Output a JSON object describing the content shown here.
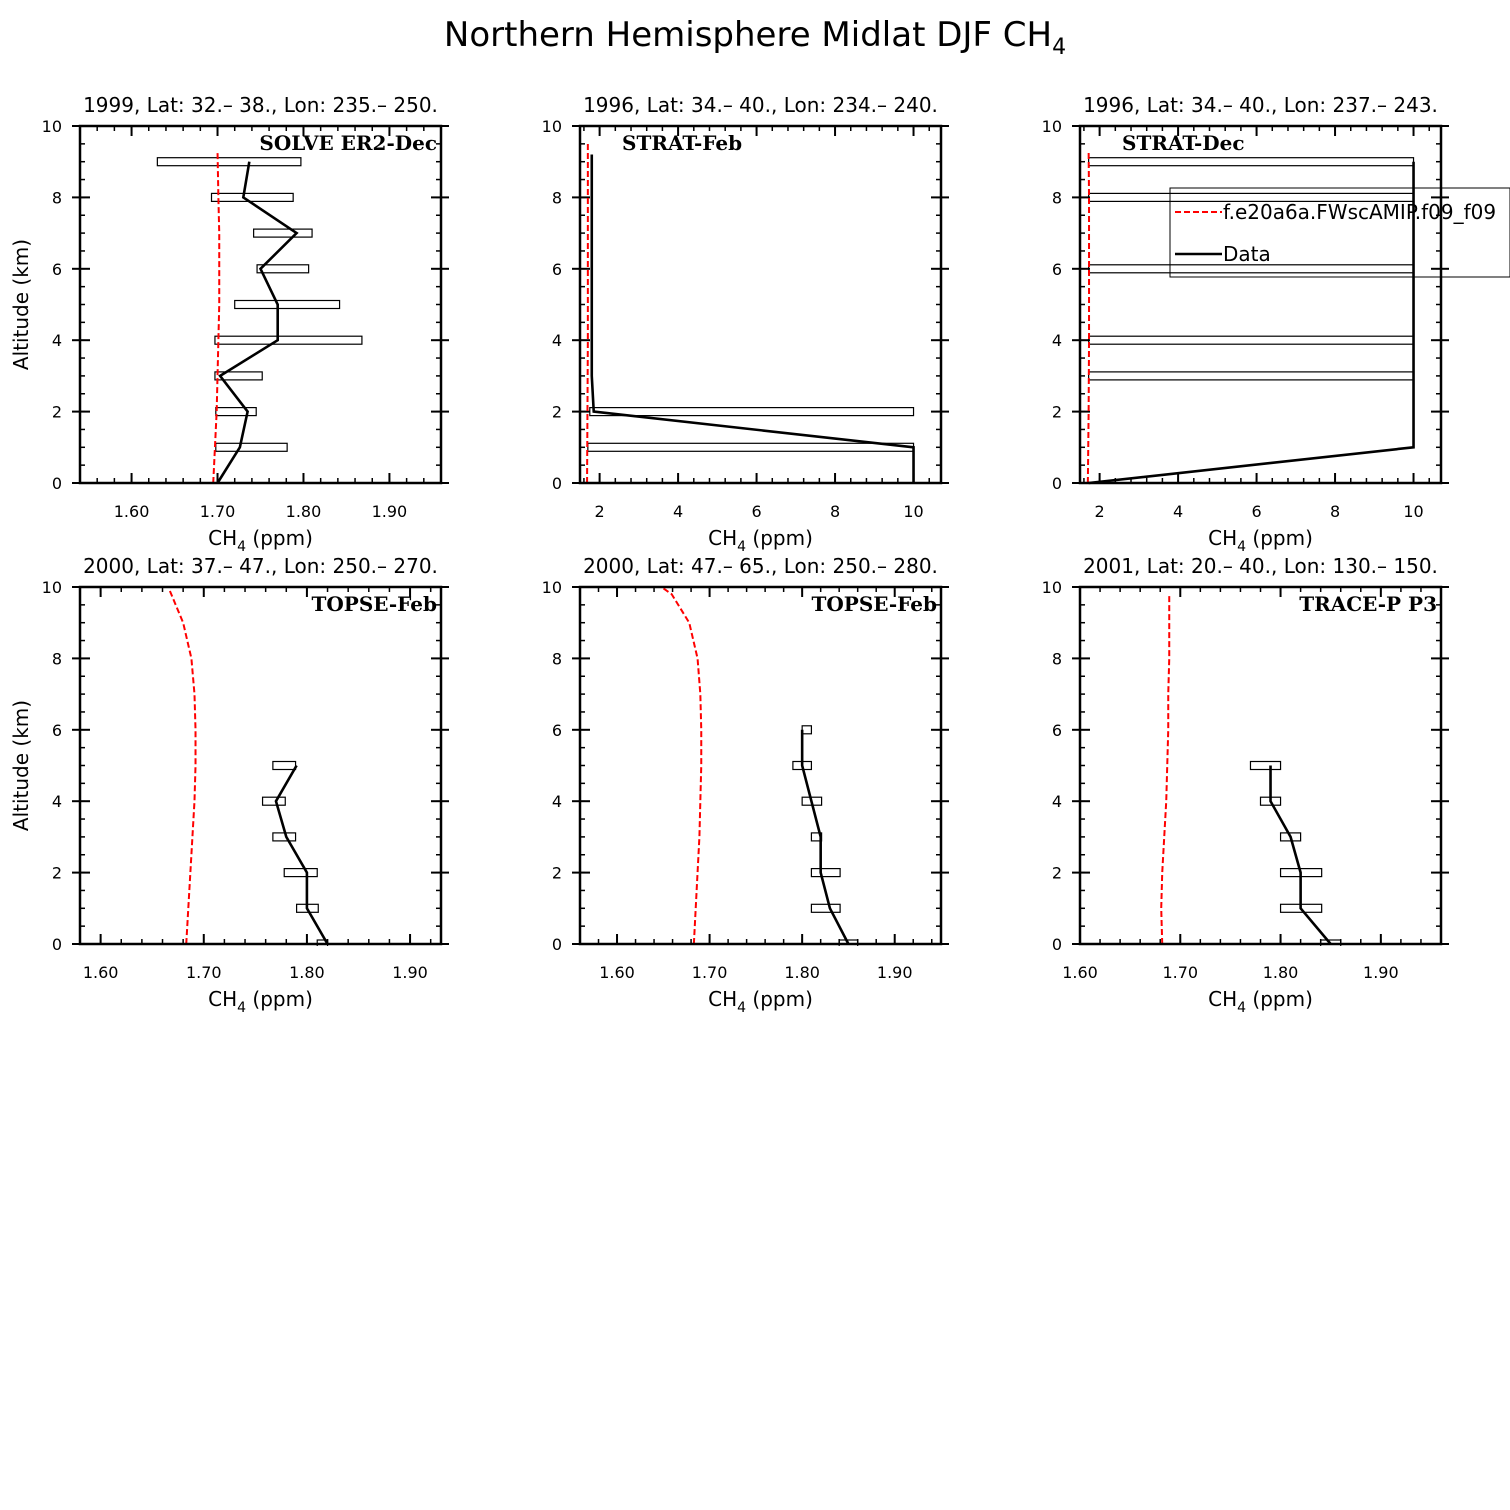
{
  "figure": {
    "title_main": "Northern Hemisphere Midlat DJF CH",
    "title_sub": "4"
  },
  "legend": {
    "placement": "inside third top panel, overflowing right edge",
    "model_label": "f.e20a6a.FWscAMIP.f09_f09",
    "data_label": "Data",
    "model_color": "#ff0000",
    "data_color": "#000000"
  },
  "chart_data": [
    {
      "type": "line",
      "title": "1999, Lat: 32.– 38., Lon: 235.– 250.",
      "campaign": "SOLVE ER2-Dec",
      "xlabel": "CH",
      "xlabel_sub": "4",
      "xlabel_unit": " (ppm)",
      "ylabel": "Altitude (km)",
      "xlim": [
        1.54,
        1.96
      ],
      "ylim": [
        0,
        10
      ],
      "xticks": [
        1.6,
        1.7,
        1.8,
        1.9
      ],
      "xtick_labels": [
        "1.60",
        "1.70",
        "1.80",
        "1.90"
      ],
      "yticks": [
        0,
        2,
        4,
        6,
        8,
        10
      ],
      "ytick_labels": [
        "0",
        "2",
        "4",
        "6",
        "8",
        "10"
      ],
      "series": [
        {
          "name": "f.e20a6a.FWscAMIP.f09_f09",
          "x": [
            1.695,
            1.697,
            1.699,
            1.7,
            1.701,
            1.702,
            1.702,
            1.702,
            1.701,
            1.7
          ],
          "y": [
            0,
            1,
            2,
            3,
            4,
            5,
            6,
            7,
            8,
            9.3
          ]
        },
        {
          "name": "Data",
          "x": [
            1.7,
            1.726,
            1.735,
            1.703,
            1.77,
            1.77,
            1.75,
            1.792,
            1.73,
            1.737
          ],
          "y": [
            0,
            1,
            2,
            3,
            4,
            5,
            6,
            7,
            8,
            9
          ]
        }
      ],
      "ranges": [
        {
          "y": 1,
          "lo": 1.698,
          "hi": 1.781
        },
        {
          "y": 2,
          "lo": 1.698,
          "hi": 1.745
        },
        {
          "y": 3,
          "lo": 1.697,
          "hi": 1.752
        },
        {
          "y": 4,
          "lo": 1.697,
          "hi": 1.868
        },
        {
          "y": 5,
          "lo": 1.72,
          "hi": 1.842
        },
        {
          "y": 6,
          "lo": 1.746,
          "hi": 1.806
        },
        {
          "y": 7,
          "lo": 1.742,
          "hi": 1.81
        },
        {
          "y": 8,
          "lo": 1.693,
          "hi": 1.788
        },
        {
          "y": 9,
          "lo": 1.63,
          "hi": 1.797
        }
      ]
    },
    {
      "type": "line",
      "title": "1996, Lat: 34.– 40., Lon: 234.– 240.",
      "campaign": "STRAT-Feb",
      "xlabel": "CH",
      "xlabel_sub": "4",
      "xlabel_unit": " (ppm)",
      "ylabel": "",
      "xlim": [
        1.5,
        10.7
      ],
      "ylim": [
        0,
        10
      ],
      "xticks": [
        2,
        4,
        6,
        8,
        10
      ],
      "xtick_labels": [
        "2",
        "4",
        "6",
        "8",
        "10"
      ],
      "yticks": [
        0,
        2,
        4,
        6,
        8,
        10
      ],
      "ytick_labels": [
        "0",
        "2",
        "4",
        "6",
        "8",
        "10"
      ],
      "series": [
        {
          "name": "f.e20a6a.FWscAMIP.f09_f09",
          "x": [
            1.68,
            1.69,
            1.7,
            1.7,
            1.7,
            1.7
          ],
          "y": [
            0,
            2,
            4,
            6,
            8,
            9.5
          ]
        },
        {
          "name": "Data",
          "x": [
            10,
            10,
            1.85,
            1.8,
            1.8,
            1.8,
            1.8,
            1.8
          ],
          "y": [
            0,
            1,
            2,
            3,
            4,
            6,
            8,
            9.2
          ]
        }
      ],
      "ranges": [
        {
          "y": 1,
          "lo": 1.7,
          "hi": 10.0
        },
        {
          "y": 2,
          "lo": 1.75,
          "hi": 10.0
        }
      ]
    },
    {
      "type": "line",
      "title": "1996, Lat: 34.– 40., Lon: 237.– 243.",
      "campaign": "STRAT-Dec",
      "xlabel": "CH",
      "xlabel_sub": "4",
      "xlabel_unit": " (ppm)",
      "ylabel": "",
      "xlim": [
        1.5,
        10.7
      ],
      "ylim": [
        0,
        10
      ],
      "xticks": [
        2,
        4,
        6,
        8,
        10
      ],
      "xtick_labels": [
        "2",
        "4",
        "6",
        "8",
        "10"
      ],
      "yticks": [
        0,
        2,
        4,
        6,
        8,
        10
      ],
      "ytick_labels": [
        "0",
        "2",
        "4",
        "6",
        "8",
        "10"
      ],
      "series": [
        {
          "name": "f.e20a6a.FWscAMIP.f09_f09",
          "x": [
            1.7,
            1.72,
            1.73,
            1.73,
            1.73,
            1.72
          ],
          "y": [
            0,
            2,
            4,
            6,
            8,
            9.3
          ]
        },
        {
          "name": "Data",
          "x": [
            1.72,
            10,
            10,
            10,
            10,
            10,
            10
          ],
          "y": [
            0,
            1,
            3,
            4,
            6,
            8,
            9
          ]
        }
      ],
      "ranges": [
        {
          "y": 3,
          "lo": 1.72,
          "hi": 10.0
        },
        {
          "y": 4,
          "lo": 1.72,
          "hi": 10.0
        },
        {
          "y": 6,
          "lo": 1.72,
          "hi": 10.0
        },
        {
          "y": 8,
          "lo": 1.72,
          "hi": 10.0
        },
        {
          "y": 9,
          "lo": 1.72,
          "hi": 10.0
        }
      ]
    },
    {
      "type": "line",
      "title": "2000, Lat: 37.– 47., Lon: 250.– 270.",
      "campaign": "TOPSE-Feb",
      "xlabel": "CH",
      "xlabel_sub": "4",
      "xlabel_unit": " (ppm)",
      "ylabel": "Altitude (km)",
      "xlim": [
        1.58,
        1.93
      ],
      "ylim": [
        0,
        10
      ],
      "xticks": [
        1.6,
        1.7,
        1.8,
        1.9
      ],
      "xtick_labels": [
        "1.60",
        "1.70",
        "1.80",
        "1.90"
      ],
      "yticks": [
        0,
        2,
        4,
        6,
        8,
        10
      ],
      "ytick_labels": [
        "0",
        "2",
        "4",
        "6",
        "8",
        "10"
      ],
      "series": [
        {
          "name": "f.e20a6a.FWscAMIP.f09_f09",
          "x": [
            1.683,
            1.685,
            1.687,
            1.689,
            1.691,
            1.692,
            1.692,
            1.691,
            1.688,
            1.68,
            1.667
          ],
          "y": [
            0,
            1,
            2,
            3,
            4,
            5,
            6,
            7,
            8,
            9,
            9.9
          ]
        },
        {
          "name": "Data",
          "x": [
            1.82,
            1.8,
            1.8,
            1.78,
            1.77,
            1.79
          ],
          "y": [
            0,
            1,
            2,
            3,
            4,
            5
          ]
        }
      ],
      "ranges": [
        {
          "y": 0,
          "lo": 1.81,
          "hi": 1.82
        },
        {
          "y": 1,
          "lo": 1.79,
          "hi": 1.811
        },
        {
          "y": 2,
          "lo": 1.778,
          "hi": 1.81
        },
        {
          "y": 3,
          "lo": 1.767,
          "hi": 1.789
        },
        {
          "y": 4,
          "lo": 1.757,
          "hi": 1.779
        },
        {
          "y": 5,
          "lo": 1.767,
          "hi": 1.789
        }
      ]
    },
    {
      "type": "line",
      "title": "2000, Lat: 47.– 65., Lon: 250.– 280.",
      "campaign": "TOPSE-Feb",
      "xlabel": "CH",
      "xlabel_sub": "4",
      "xlabel_unit": " (ppm)",
      "ylabel": "",
      "xlim": [
        1.56,
        1.95
      ],
      "ylim": [
        0,
        10
      ],
      "xticks": [
        1.6,
        1.7,
        1.8,
        1.9
      ],
      "xtick_labels": [
        "1.60",
        "1.70",
        "1.80",
        "1.90"
      ],
      "yticks": [
        0,
        2,
        4,
        6,
        8,
        10
      ],
      "ytick_labels": [
        "0",
        "2",
        "4",
        "6",
        "8",
        "10"
      ],
      "series": [
        {
          "name": "f.e20a6a.FWscAMIP.f09_f09",
          "x": [
            1.683,
            1.685,
            1.687,
            1.689,
            1.69,
            1.691,
            1.691,
            1.69,
            1.687,
            1.678,
            1.659,
            1.648
          ],
          "y": [
            0,
            1,
            2,
            3,
            4,
            5,
            6,
            7,
            8,
            9,
            9.8,
            10
          ]
        },
        {
          "name": "Data",
          "x": [
            1.85,
            1.83,
            1.82,
            1.82,
            1.81,
            1.8,
            1.8
          ],
          "y": [
            0,
            1,
            2,
            3,
            4,
            5,
            6
          ]
        }
      ],
      "ranges": [
        {
          "y": 0,
          "lo": 1.84,
          "hi": 1.86
        },
        {
          "y": 1,
          "lo": 1.81,
          "hi": 1.841
        },
        {
          "y": 2,
          "lo": 1.81,
          "hi": 1.841
        },
        {
          "y": 3,
          "lo": 1.81,
          "hi": 1.821
        },
        {
          "y": 4,
          "lo": 1.8,
          "hi": 1.821
        },
        {
          "y": 5,
          "lo": 1.79,
          "hi": 1.81
        },
        {
          "y": 6,
          "lo": 1.8,
          "hi": 1.81
        }
      ]
    },
    {
      "type": "line",
      "title": "2001, Lat: 20.– 40., Lon: 130.– 150.",
      "campaign": "TRACE-P P3",
      "xlabel": "CH",
      "xlabel_sub": "4",
      "xlabel_unit": " (ppm)",
      "ylabel": "",
      "xlim": [
        1.6,
        1.96
      ],
      "ylim": [
        0,
        10
      ],
      "xticks": [
        1.6,
        1.7,
        1.8,
        1.9
      ],
      "xtick_labels": [
        "1.60",
        "1.70",
        "1.80",
        "1.90"
      ],
      "yticks": [
        0,
        2,
        4,
        6,
        8,
        10
      ],
      "ytick_labels": [
        "0",
        "2",
        "4",
        "6",
        "8",
        "10"
      ],
      "series": [
        {
          "name": "f.e20a6a.FWscAMIP.f09_f09",
          "x": [
            1.682,
            1.681,
            1.682,
            1.684,
            1.686,
            1.687,
            1.688,
            1.688,
            1.689,
            1.689,
            1.689
          ],
          "y": [
            0,
            1,
            2,
            3,
            4,
            5,
            6,
            7,
            8,
            9,
            9.8
          ]
        },
        {
          "name": "Data",
          "x": [
            1.85,
            1.82,
            1.82,
            1.81,
            1.79,
            1.79
          ],
          "y": [
            0,
            1,
            2,
            3,
            4,
            5
          ]
        }
      ],
      "ranges": [
        {
          "y": 0,
          "lo": 1.84,
          "hi": 1.86
        },
        {
          "y": 1,
          "lo": 1.8,
          "hi": 1.841
        },
        {
          "y": 2,
          "lo": 1.8,
          "hi": 1.841
        },
        {
          "y": 3,
          "lo": 1.8,
          "hi": 1.82
        },
        {
          "y": 4,
          "lo": 1.78,
          "hi": 1.8
        },
        {
          "y": 5,
          "lo": 1.77,
          "hi": 1.8
        }
      ]
    }
  ]
}
